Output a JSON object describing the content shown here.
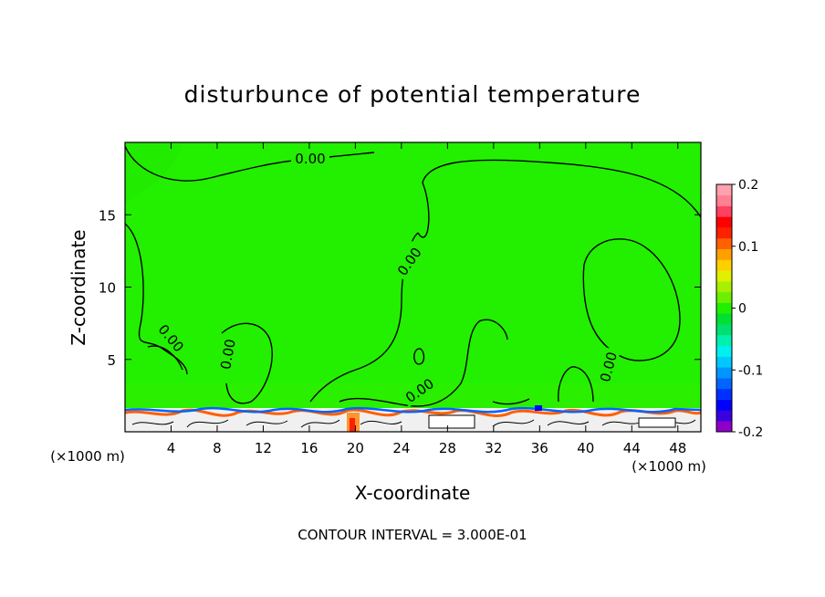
{
  "chart_data": {
    "type": "heatmap",
    "title": "disturbunce of potential temperature",
    "xlabel": "X-coordinate",
    "ylabel": "Z-coordinate",
    "x_unit_left": "(×1000 m)",
    "x_unit_right": "(×1000 m)",
    "xlim": [
      0,
      50
    ],
    "ylim": [
      0,
      20
    ],
    "x_ticks": [
      4,
      8,
      12,
      16,
      20,
      24,
      28,
      32,
      36,
      40,
      44,
      48
    ],
    "y_ticks": [
      5,
      10,
      15
    ],
    "x_tick_labels": [
      "4",
      "8",
      "12",
      "16",
      "20",
      "24",
      "28",
      "32",
      "36",
      "40",
      "44",
      "48"
    ],
    "y_tick_labels": [
      "5",
      "10",
      "15"
    ],
    "colorbar": {
      "range": [
        -0.2,
        0.2
      ],
      "tick_labels": [
        "0.2",
        "0.1",
        "0",
        "-0.1",
        "-0.2"
      ],
      "tick_values": [
        0.2,
        0.1,
        0,
        -0.1,
        -0.2
      ],
      "colors": [
        "#8e00c8",
        "#3a00e0",
        "#0000ff",
        "#0030ff",
        "#0064ff",
        "#0096ff",
        "#00c8ff",
        "#00f0f0",
        "#00f0b0",
        "#00e070",
        "#00e030",
        "#20f000",
        "#6af000",
        "#a8f000",
        "#e0f000",
        "#ffd000",
        "#ffa000",
        "#ff6000",
        "#ff2000",
        "#ff0000",
        "#ff4060",
        "#ff8090",
        "#ffa0b0"
      ]
    },
    "field_color": "#22f000",
    "contour_level_label": "0.00",
    "contour_labels": [
      "0.00",
      "0.00",
      "0.00",
      "0.00",
      "0.00",
      "0.00"
    ],
    "contour_interval_text": "CONTOUR INTERVAL = 3.000E-01"
  }
}
